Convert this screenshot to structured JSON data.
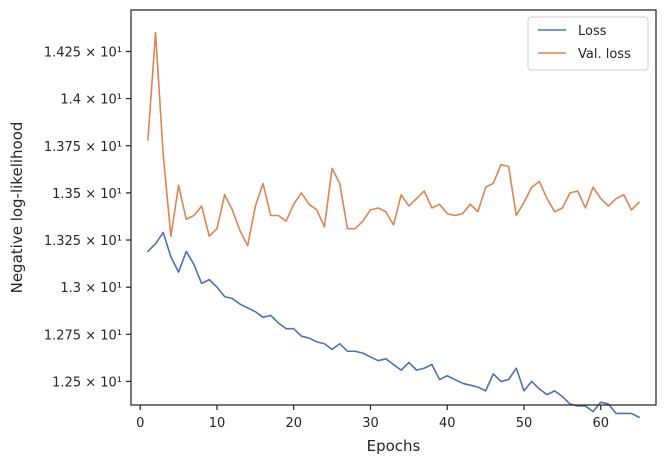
{
  "chart_data": {
    "type": "line",
    "xlabel": "Epochs",
    "ylabel": "Negative log-likelihood",
    "xlim": [
      -1.2,
      67.2
    ],
    "ylim": [
      12.375,
      14.47
    ],
    "xticks": [
      {
        "value": 0,
        "label": "0"
      },
      {
        "value": 10,
        "label": "10"
      },
      {
        "value": 20,
        "label": "20"
      },
      {
        "value": 30,
        "label": "30"
      },
      {
        "value": 40,
        "label": "40"
      },
      {
        "value": 50,
        "label": "50"
      },
      {
        "value": 60,
        "label": "60"
      }
    ],
    "yticks": [
      {
        "value": 12.5,
        "label": "1.25 × 10¹"
      },
      {
        "value": 12.75,
        "label": "1.275 × 10¹"
      },
      {
        "value": 13.0,
        "label": "1.3 × 10¹"
      },
      {
        "value": 13.25,
        "label": "1.325 × 10¹"
      },
      {
        "value": 13.5,
        "label": "1.35 × 10¹"
      },
      {
        "value": 13.75,
        "label": "1.375 × 10¹"
      },
      {
        "value": 14.0,
        "label": "1.4 × 10¹"
      },
      {
        "value": 14.25,
        "label": "1.425 × 10¹"
      }
    ],
    "grid": false,
    "legend_position": "top-right",
    "x": [
      1,
      2,
      3,
      4,
      5,
      6,
      7,
      8,
      9,
      10,
      11,
      12,
      13,
      14,
      15,
      16,
      17,
      18,
      19,
      20,
      21,
      22,
      23,
      24,
      25,
      26,
      27,
      28,
      29,
      30,
      31,
      32,
      33,
      34,
      35,
      36,
      37,
      38,
      39,
      40,
      41,
      42,
      43,
      44,
      45,
      46,
      47,
      48,
      49,
      50,
      51,
      52,
      53,
      54,
      55,
      56,
      57,
      58,
      59,
      60,
      61,
      62,
      63,
      64,
      65
    ],
    "series": [
      {
        "name": "Loss",
        "color": "#4c72b0",
        "values": [
          13.19,
          13.23,
          13.29,
          13.16,
          13.08,
          13.19,
          13.12,
          13.02,
          13.04,
          13.0,
          12.95,
          12.94,
          12.91,
          12.89,
          12.87,
          12.84,
          12.85,
          12.81,
          12.78,
          12.78,
          12.74,
          12.73,
          12.71,
          12.7,
          12.67,
          12.7,
          12.66,
          12.66,
          12.65,
          12.63,
          12.61,
          12.62,
          12.59,
          12.56,
          12.6,
          12.56,
          12.57,
          12.59,
          12.51,
          12.53,
          12.51,
          12.49,
          12.48,
          12.47,
          12.45,
          12.54,
          12.5,
          12.51,
          12.57,
          12.45,
          12.5,
          12.46,
          12.43,
          12.45,
          12.42,
          12.38,
          12.37,
          12.37,
          12.34,
          12.39,
          12.38,
          12.33,
          12.33,
          12.33,
          12.31
        ]
      },
      {
        "name": "Val. loss",
        "color": "#dd8452",
        "values": [
          13.78,
          14.35,
          13.7,
          13.27,
          13.54,
          13.36,
          13.38,
          13.43,
          13.27,
          13.31,
          13.49,
          13.41,
          13.3,
          13.22,
          13.43,
          13.55,
          13.38,
          13.38,
          13.35,
          13.44,
          13.5,
          13.44,
          13.41,
          13.32,
          13.63,
          13.55,
          13.31,
          13.31,
          13.35,
          13.41,
          13.42,
          13.4,
          13.33,
          13.49,
          13.43,
          13.47,
          13.51,
          13.42,
          13.44,
          13.39,
          13.38,
          13.39,
          13.44,
          13.4,
          13.53,
          13.55,
          13.65,
          13.64,
          13.38,
          13.45,
          13.53,
          13.56,
          13.47,
          13.4,
          13.42,
          13.5,
          13.51,
          13.42,
          13.53,
          13.47,
          13.43,
          13.47,
          13.49,
          13.41,
          13.45
        ]
      }
    ]
  }
}
